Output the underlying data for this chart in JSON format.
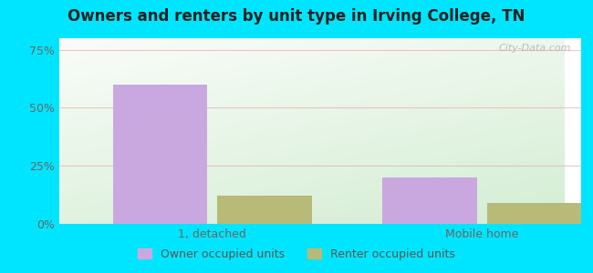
{
  "title": "Owners and renters by unit type in Irving College, TN",
  "categories": [
    "1, detached",
    "Mobile home"
  ],
  "owner_values": [
    60,
    20
  ],
  "renter_values": [
    12,
    9
  ],
  "owner_color": "#c9a8e0",
  "renter_color": "#b8ba78",
  "yticks": [
    0,
    25,
    50,
    75
  ],
  "ytick_labels": [
    "0%",
    "25%",
    "50%",
    "75%"
  ],
  "ylim": [
    0,
    80
  ],
  "background_outer": "#00e5ff",
  "legend_owner": "Owner occupied units",
  "legend_renter": "Renter occupied units",
  "watermark": "City-Data.com",
  "bar_width": 0.28,
  "x_positions": [
    0.3,
    1.1
  ]
}
